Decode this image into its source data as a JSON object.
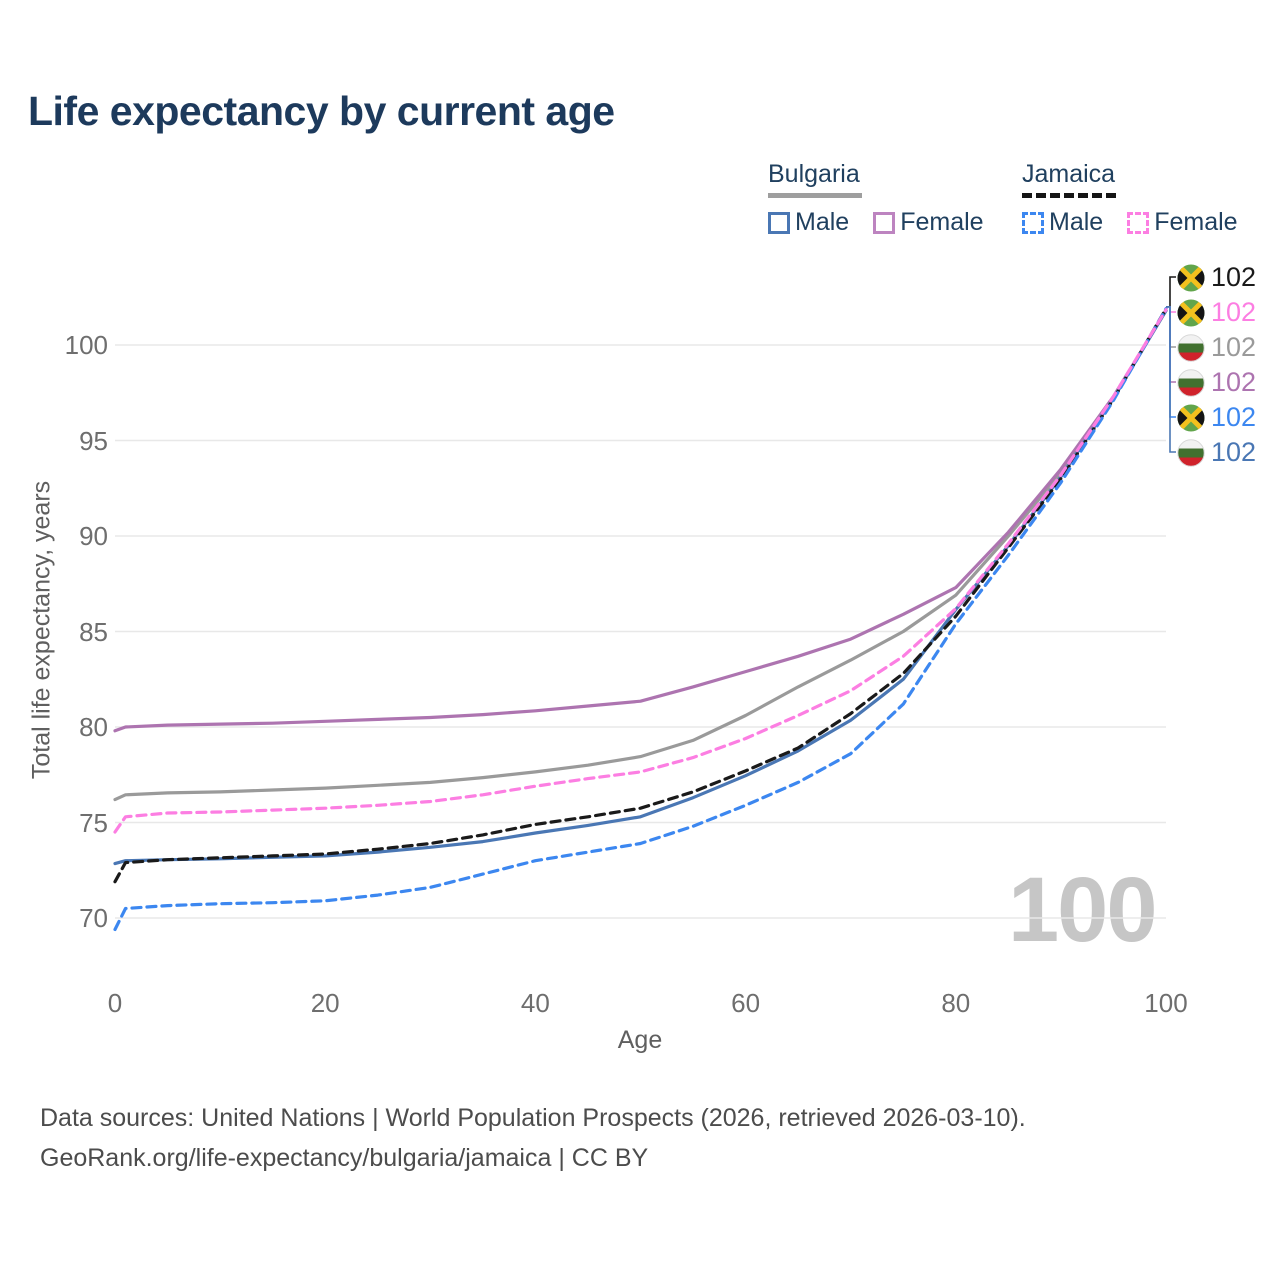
{
  "title": "Life expectancy by current age",
  "watermark": "100",
  "legend": {
    "groups": [
      {
        "country": "Bulgaria",
        "line_style": "solid",
        "underline_color": "#9e9e9e",
        "items": [
          {
            "label": "Male",
            "color": "#4a77b4",
            "dashed": false
          },
          {
            "label": "Female",
            "color": "#bd84c0",
            "dashed": false
          }
        ]
      },
      {
        "country": "Jamaica",
        "line_style": "dashed",
        "underline_color": "#151515",
        "items": [
          {
            "label": "Male",
            "color": "#3c87f0",
            "dashed": true
          },
          {
            "label": "Female",
            "color": "#fc7ee2",
            "dashed": true
          }
        ]
      }
    ]
  },
  "chart_data": {
    "type": "line",
    "title": "Life expectancy by current age",
    "xlabel": "Age",
    "ylabel": "Total life expectancy, years",
    "xlim": [
      0,
      100
    ],
    "ylim": [
      68,
      103
    ],
    "xticks": [
      0,
      20,
      40,
      60,
      80,
      100
    ],
    "yticks": [
      70,
      75,
      80,
      85,
      90,
      95,
      100
    ],
    "grid": true,
    "legend_position": "top-right",
    "x": [
      0,
      1,
      5,
      10,
      15,
      20,
      25,
      30,
      35,
      40,
      45,
      50,
      55,
      60,
      65,
      70,
      75,
      80,
      85,
      90,
      95,
      100
    ],
    "series": [
      {
        "name": "Bulgaria Total",
        "key": "bulgaria-total",
        "color": "#9a9a9a",
        "dashed": false,
        "values": [
          76.2,
          76.45,
          76.55,
          76.6,
          76.7,
          76.8,
          76.95,
          77.1,
          77.35,
          77.65,
          78.0,
          78.45,
          79.3,
          80.6,
          82.1,
          83.5,
          85.0,
          86.9,
          90.0,
          93.3,
          97.25,
          101.8
        ]
      },
      {
        "name": "Bulgaria Female",
        "key": "bulgaria-female",
        "color": "#ad74b0",
        "dashed": false,
        "values": [
          79.8,
          80.0,
          80.1,
          80.15,
          80.2,
          80.3,
          80.4,
          80.5,
          80.65,
          80.85,
          81.1,
          81.35,
          82.1,
          82.9,
          83.7,
          84.6,
          85.9,
          87.3,
          90.2,
          93.5,
          97.3,
          101.8
        ]
      },
      {
        "name": "Bulgaria Male",
        "key": "bulgaria-male",
        "color": "#4a77b4",
        "dashed": false,
        "values": [
          72.85,
          73.0,
          73.05,
          73.1,
          73.18,
          73.25,
          73.45,
          73.7,
          74.0,
          74.45,
          74.85,
          75.3,
          76.3,
          77.45,
          78.75,
          80.35,
          82.5,
          86.15,
          89.5,
          93.1,
          97.2,
          101.8
        ]
      },
      {
        "name": "Jamaica Total",
        "key": "jamaica-total",
        "color": "#1a1a1a",
        "dashed": true,
        "values": [
          71.9,
          72.9,
          73.05,
          73.15,
          73.25,
          73.35,
          73.6,
          73.9,
          74.35,
          74.9,
          75.3,
          75.75,
          76.6,
          77.7,
          78.9,
          80.7,
          82.8,
          85.8,
          89.4,
          93.0,
          97.15,
          101.9
        ]
      },
      {
        "name": "Jamaica Male",
        "key": "jamaica-male",
        "color": "#3c87f0",
        "dashed": true,
        "values": [
          69.4,
          70.5,
          70.65,
          70.75,
          70.8,
          70.9,
          71.2,
          71.6,
          72.3,
          73.0,
          73.45,
          73.9,
          74.8,
          75.9,
          77.1,
          78.6,
          81.2,
          85.4,
          89.0,
          92.8,
          97.1,
          101.9
        ]
      },
      {
        "name": "Jamaica Female",
        "key": "jamaica-female",
        "color": "#fc7ee2",
        "dashed": true,
        "values": [
          74.5,
          75.3,
          75.5,
          75.55,
          75.65,
          75.75,
          75.9,
          76.1,
          76.45,
          76.9,
          77.3,
          77.65,
          78.4,
          79.4,
          80.6,
          81.9,
          83.7,
          86.2,
          89.6,
          93.2,
          97.3,
          101.85
        ]
      }
    ],
    "end_labels": [
      {
        "flag": "jamaica",
        "value": "102",
        "color": "#1a1a1a"
      },
      {
        "flag": "jamaica",
        "value": "102",
        "color": "#fc7ee2"
      },
      {
        "flag": "bulgaria",
        "value": "102",
        "color": "#9a9a9a"
      },
      {
        "flag": "bulgaria",
        "value": "102",
        "color": "#ad74b0"
      },
      {
        "flag": "jamaica",
        "value": "102",
        "color": "#3c87f0"
      },
      {
        "flag": "bulgaria",
        "value": "102",
        "color": "#4a77b4"
      }
    ]
  },
  "footer": {
    "line1": "Data sources: United Nations | World Population Prospects (2026, retrieved 2026-03-10).",
    "line2": "GeoRank.org/life-expectancy/bulgaria/jamaica | CC BY"
  }
}
